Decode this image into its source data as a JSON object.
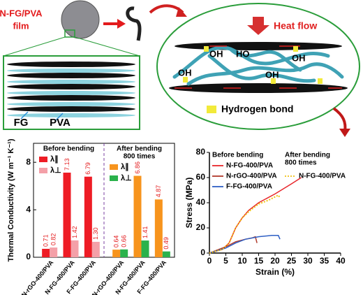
{
  "diagram": {
    "film_label": [
      "N-FG/PVA",
      "film"
    ],
    "heat_flow": "Heat flow",
    "oh_labels": [
      "OH",
      "HO",
      "OH",
      "OH",
      "OH"
    ],
    "hydrogen_bond": "Hydrogen bond",
    "fg": "FG",
    "pva": "PVA"
  },
  "chart_data": [
    {
      "type": "bar",
      "y_label": "Thermal Conductivity (W m⁻¹ K⁻¹)",
      "ylim": [
        0,
        9.6
      ],
      "yticks": [
        0,
        4,
        8
      ],
      "groups": [
        {
          "title": [
            "Before bending"
          ],
          "categories": [
            "N-rGO-400/PVA",
            "N-FG-400/PVA",
            "F-FG-400/PVA"
          ],
          "series": [
            {
              "name": "λ∥",
              "color": "#ee1c25",
              "values": [
                0.71,
                7.13,
                6.79
              ],
              "value_labels": [
                "0.71",
                "7.13",
                "6.79"
              ]
            },
            {
              "name": "λ⊥",
              "color": "#f4a0a8",
              "values": [
                0.82,
                1.42,
                1.3
              ],
              "value_labels": [
                "0.82",
                "1.42",
                "1.30"
              ]
            }
          ]
        },
        {
          "title": [
            "After bending",
            "800 times"
          ],
          "categories": [
            "N-rGO-400/PVA",
            "N-FG-400/PVA",
            "F-FG-400/PVA"
          ],
          "series": [
            {
              "name": "λ∥",
              "color": "#f7941d",
              "values": [
                0.64,
                6.86,
                4.87
              ],
              "value_labels": [
                "0.64",
                "6.86",
                "4.87"
              ]
            },
            {
              "name": "λ⊥",
              "color": "#2bb24c",
              "values": [
                0.66,
                1.41,
                0.49
              ],
              "value_labels": [
                "0.66",
                "1.41",
                "0.49"
              ]
            }
          ]
        }
      ]
    },
    {
      "type": "line",
      "x_label": "Strain (%)",
      "y_label": "Stress (MPa)",
      "xlim": [
        0,
        40
      ],
      "xticks": [
        0,
        5,
        10,
        15,
        20,
        25,
        30,
        35,
        40
      ],
      "ylim": [
        0,
        80
      ],
      "yticks": [
        0,
        20,
        40,
        60,
        80
      ],
      "legend_titles": [
        [
          "Before bending"
        ],
        [
          "After bending",
          "800 times"
        ]
      ],
      "series": [
        {
          "name": "N-FG-400/PVA",
          "color": "#e8262b",
          "dash": false,
          "legend_group": 0,
          "x": [
            0,
            4,
            6,
            8,
            10,
            12,
            15,
            20,
            25,
            28
          ],
          "values": [
            0,
            3,
            8,
            20,
            28,
            34,
            40,
            47,
            55,
            60
          ]
        },
        {
          "name": "N-rGO-400/PVA",
          "color": "#b0392b",
          "dash": false,
          "legend_group": 0,
          "x": [
            0,
            5,
            8,
            11,
            13,
            14,
            14.5
          ],
          "values": [
            0,
            5,
            9,
            11,
            12,
            13,
            8
          ]
        },
        {
          "name": "F-FG-400/PVA",
          "color": "#2e5fc4",
          "dash": false,
          "legend_group": 0,
          "x": [
            0,
            5,
            8,
            11,
            15,
            19,
            21,
            21.5
          ],
          "values": [
            0,
            4,
            8,
            11,
            13,
            14,
            14,
            11
          ]
        },
        {
          "name": "N-FG-400/PVA",
          "color": "#f0c010",
          "dash": true,
          "legend_group": 1,
          "x": [
            0,
            4,
            6,
            8,
            10,
            12,
            15,
            18,
            21,
            21.5
          ],
          "values": [
            0,
            3,
            8,
            20,
            28,
            33,
            39,
            42,
            46,
            44
          ]
        }
      ]
    }
  ]
}
